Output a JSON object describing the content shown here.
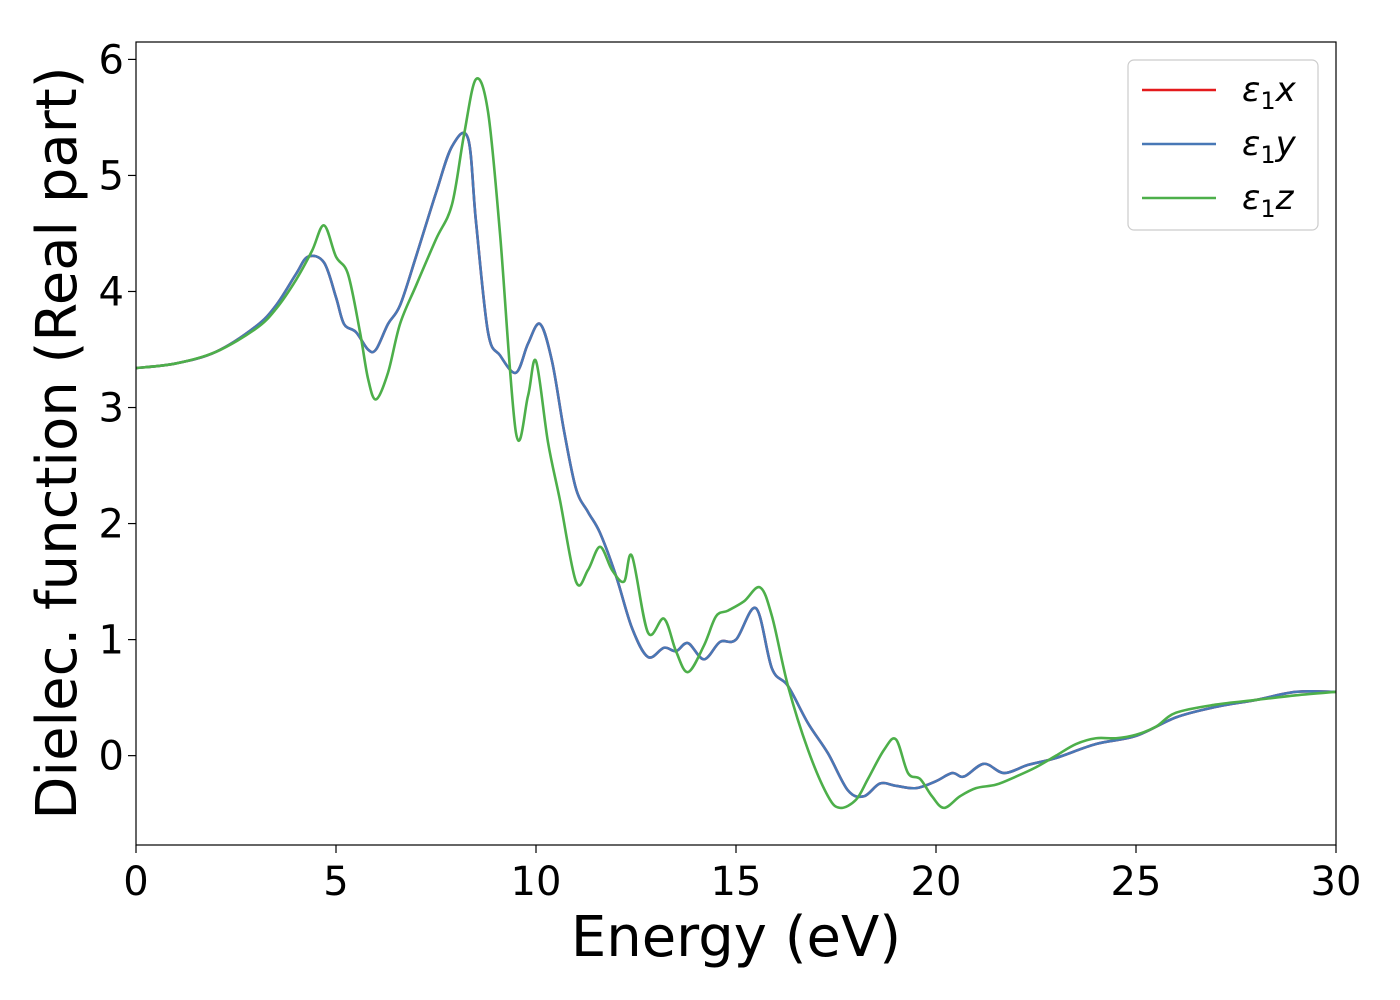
{
  "chart_data": {
    "type": "line",
    "title": "",
    "xlabel": "Energy (eV)",
    "ylabel": "Dielec. function (Real part)",
    "xlim": [
      0,
      30
    ],
    "ylim": [
      -0.77,
      6.15
    ],
    "xticks": [
      0,
      5,
      10,
      15,
      20,
      25,
      30
    ],
    "yticks": [
      0,
      1,
      2,
      3,
      4,
      5,
      6
    ],
    "grid": false,
    "legend_position": "top-right",
    "series": [
      {
        "name": "ε₁x",
        "legend_base": "ε",
        "legend_sub": "1",
        "legend_var": "x",
        "color": "#e41a1c",
        "x": [
          0,
          1,
          2,
          3,
          3.5,
          4,
          4.3,
          4.7,
          5,
          5.2,
          5.5,
          5.8,
          6,
          6.3,
          6.6,
          7,
          7.5,
          7.9,
          8.3,
          8.5,
          8.8,
          9.1,
          9.5,
          9.8,
          10.1,
          10.4,
          10.7,
          11,
          11.3,
          11.6,
          12,
          12.4,
          12.8,
          13.2,
          13.5,
          13.8,
          14.2,
          14.6,
          15,
          15.5,
          15.9,
          16.3,
          16.8,
          17.3,
          17.8,
          18.2,
          18.6,
          19,
          19.5,
          20,
          20.4,
          20.7,
          21.2,
          21.7,
          22.3,
          23,
          24,
          25,
          26,
          27,
          28,
          29,
          30
        ],
        "y": [
          3.34,
          3.38,
          3.48,
          3.7,
          3.88,
          4.15,
          4.3,
          4.25,
          3.95,
          3.72,
          3.65,
          3.5,
          3.5,
          3.72,
          3.88,
          4.3,
          4.85,
          5.25,
          5.32,
          4.6,
          3.65,
          3.45,
          3.3,
          3.55,
          3.72,
          3.4,
          2.8,
          2.3,
          2.1,
          1.92,
          1.55,
          1.1,
          0.85,
          0.93,
          0.9,
          0.97,
          0.83,
          0.98,
          1.0,
          1.27,
          0.75,
          0.6,
          0.28,
          0.02,
          -0.3,
          -0.35,
          -0.24,
          -0.26,
          -0.28,
          -0.22,
          -0.15,
          -0.18,
          -0.07,
          -0.15,
          -0.08,
          -0.02,
          0.1,
          0.17,
          0.33,
          0.42,
          0.48,
          0.55,
          0.55
        ]
      },
      {
        "name": "ε₁y",
        "legend_base": "ε",
        "legend_sub": "1",
        "legend_var": "y",
        "color": "#4878b6",
        "x": [
          0,
          1,
          2,
          3,
          3.5,
          4,
          4.3,
          4.7,
          5,
          5.2,
          5.5,
          5.8,
          6,
          6.3,
          6.6,
          7,
          7.5,
          7.9,
          8.3,
          8.5,
          8.8,
          9.1,
          9.5,
          9.8,
          10.1,
          10.4,
          10.7,
          11,
          11.3,
          11.6,
          12,
          12.4,
          12.8,
          13.2,
          13.5,
          13.8,
          14.2,
          14.6,
          15,
          15.5,
          15.9,
          16.3,
          16.8,
          17.3,
          17.8,
          18.2,
          18.6,
          19,
          19.5,
          20,
          20.4,
          20.7,
          21.2,
          21.7,
          22.3,
          23,
          24,
          25,
          26,
          27,
          28,
          29,
          30
        ],
        "y": [
          3.34,
          3.38,
          3.48,
          3.7,
          3.88,
          4.15,
          4.3,
          4.25,
          3.95,
          3.72,
          3.65,
          3.5,
          3.5,
          3.72,
          3.88,
          4.3,
          4.85,
          5.25,
          5.32,
          4.6,
          3.65,
          3.45,
          3.3,
          3.55,
          3.72,
          3.4,
          2.8,
          2.3,
          2.1,
          1.92,
          1.55,
          1.1,
          0.85,
          0.93,
          0.9,
          0.97,
          0.83,
          0.98,
          1.0,
          1.27,
          0.75,
          0.6,
          0.28,
          0.02,
          -0.3,
          -0.35,
          -0.24,
          -0.26,
          -0.28,
          -0.22,
          -0.15,
          -0.18,
          -0.07,
          -0.15,
          -0.08,
          -0.02,
          0.1,
          0.17,
          0.33,
          0.42,
          0.48,
          0.55,
          0.55
        ]
      },
      {
        "name": "ε₁z",
        "legend_base": "ε",
        "legend_sub": "1",
        "legend_var": "z",
        "color": "#4daf4a",
        "x": [
          0,
          1,
          2,
          3,
          3.5,
          4,
          4.4,
          4.7,
          5,
          5.3,
          5.6,
          5.8,
          6,
          6.3,
          6.6,
          7,
          7.5,
          7.9,
          8.2,
          8.5,
          8.8,
          9.1,
          9.5,
          9.8,
          10,
          10.3,
          10.6,
          11,
          11.3,
          11.6,
          11.9,
          12.2,
          12.4,
          12.8,
          13.2,
          13.5,
          13.8,
          14.2,
          14.5,
          14.8,
          15.2,
          15.6,
          15.9,
          16.3,
          16.8,
          17.3,
          17.6,
          18,
          18.3,
          18.7,
          19,
          19.3,
          19.6,
          19.9,
          20.2,
          20.6,
          21,
          21.5,
          22,
          22.5,
          23,
          23.5,
          24,
          24.5,
          25,
          25.5,
          26,
          27,
          28,
          29,
          30
        ],
        "y": [
          3.34,
          3.38,
          3.48,
          3.68,
          3.85,
          4.1,
          4.35,
          4.57,
          4.3,
          4.15,
          3.65,
          3.25,
          3.07,
          3.3,
          3.72,
          4.05,
          4.45,
          4.75,
          5.35,
          5.83,
          5.55,
          4.5,
          2.78,
          3.1,
          3.4,
          2.7,
          2.2,
          1.5,
          1.6,
          1.8,
          1.6,
          1.5,
          1.72,
          1.06,
          1.18,
          0.9,
          0.72,
          0.95,
          1.2,
          1.25,
          1.33,
          1.45,
          1.2,
          0.6,
          0.05,
          -0.35,
          -0.45,
          -0.38,
          -0.2,
          0.05,
          0.14,
          -0.15,
          -0.2,
          -0.35,
          -0.45,
          -0.35,
          -0.28,
          -0.25,
          -0.18,
          -0.1,
          0.0,
          0.1,
          0.15,
          0.15,
          0.18,
          0.25,
          0.37,
          0.44,
          0.48,
          0.52,
          0.55
        ]
      }
    ]
  }
}
